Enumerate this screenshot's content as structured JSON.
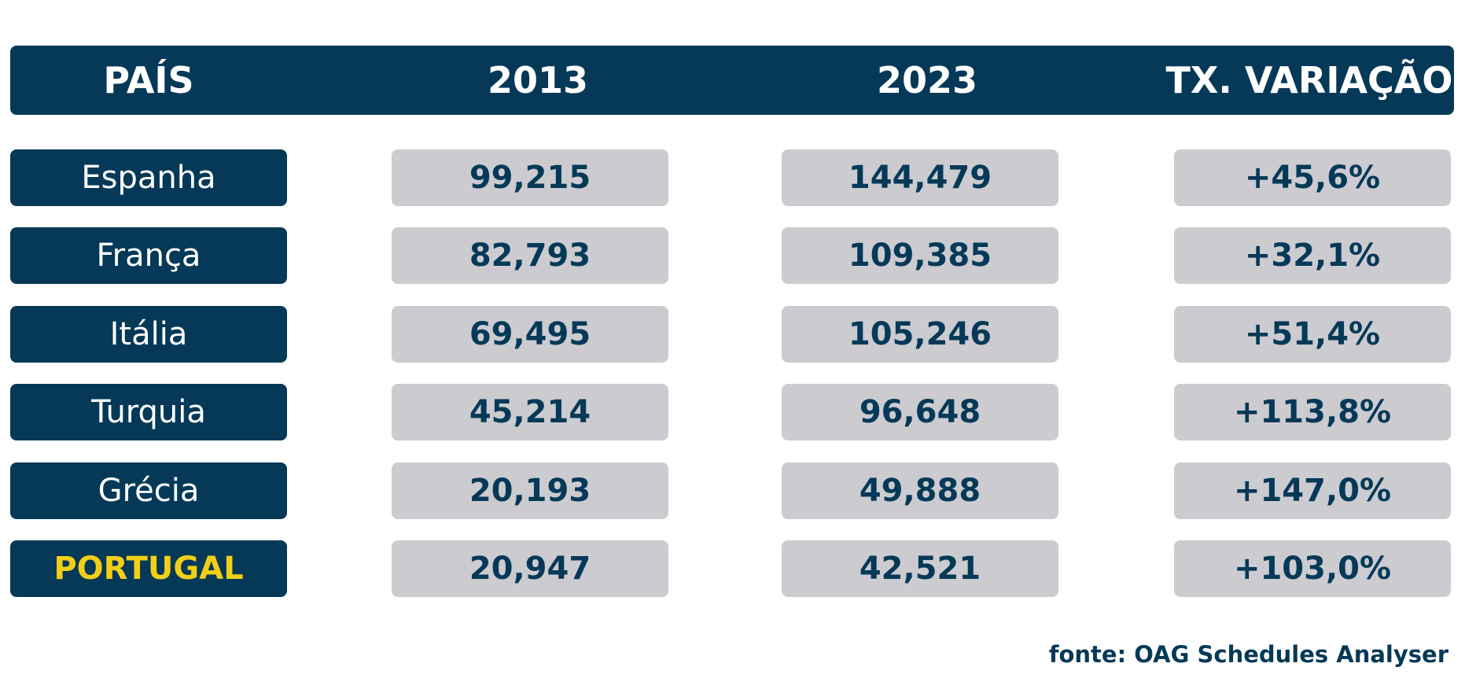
{
  "chart_data": {
    "type": "table",
    "columns": [
      "PAÍS",
      "2013",
      "2023",
      "TX. VARIAÇÃO"
    ],
    "rows": [
      {
        "country": "Espanha",
        "y2013": "99,215",
        "y2023": "144,479",
        "variation": "+45,6%",
        "highlight": false
      },
      {
        "country": "França",
        "y2013": "82,793",
        "y2023": "109,385",
        "variation": "+32,1%",
        "highlight": false
      },
      {
        "country": "Itália",
        "y2013": "69,495",
        "y2023": "105,246",
        "variation": "+51,4%",
        "highlight": false
      },
      {
        "country": "Turquia",
        "y2013": "45,214",
        "y2023": "96,648",
        "variation": "+113,8%",
        "highlight": false
      },
      {
        "country": "Grécia",
        "y2013": "20,193",
        "y2023": "49,888",
        "variation": "+147,0%",
        "highlight": false
      },
      {
        "country": "PORTUGAL",
        "y2013": "20,947",
        "y2023": "42,521",
        "variation": "+103,0%",
        "highlight": true
      }
    ],
    "source": "fonte: OAG Schedules Analyser"
  },
  "colors": {
    "header_bg": "#053957",
    "country_bg": "#053957",
    "value_bg": "#cbcbd0",
    "value_text": "#053957",
    "highlight_text": "#f2cf16"
  }
}
